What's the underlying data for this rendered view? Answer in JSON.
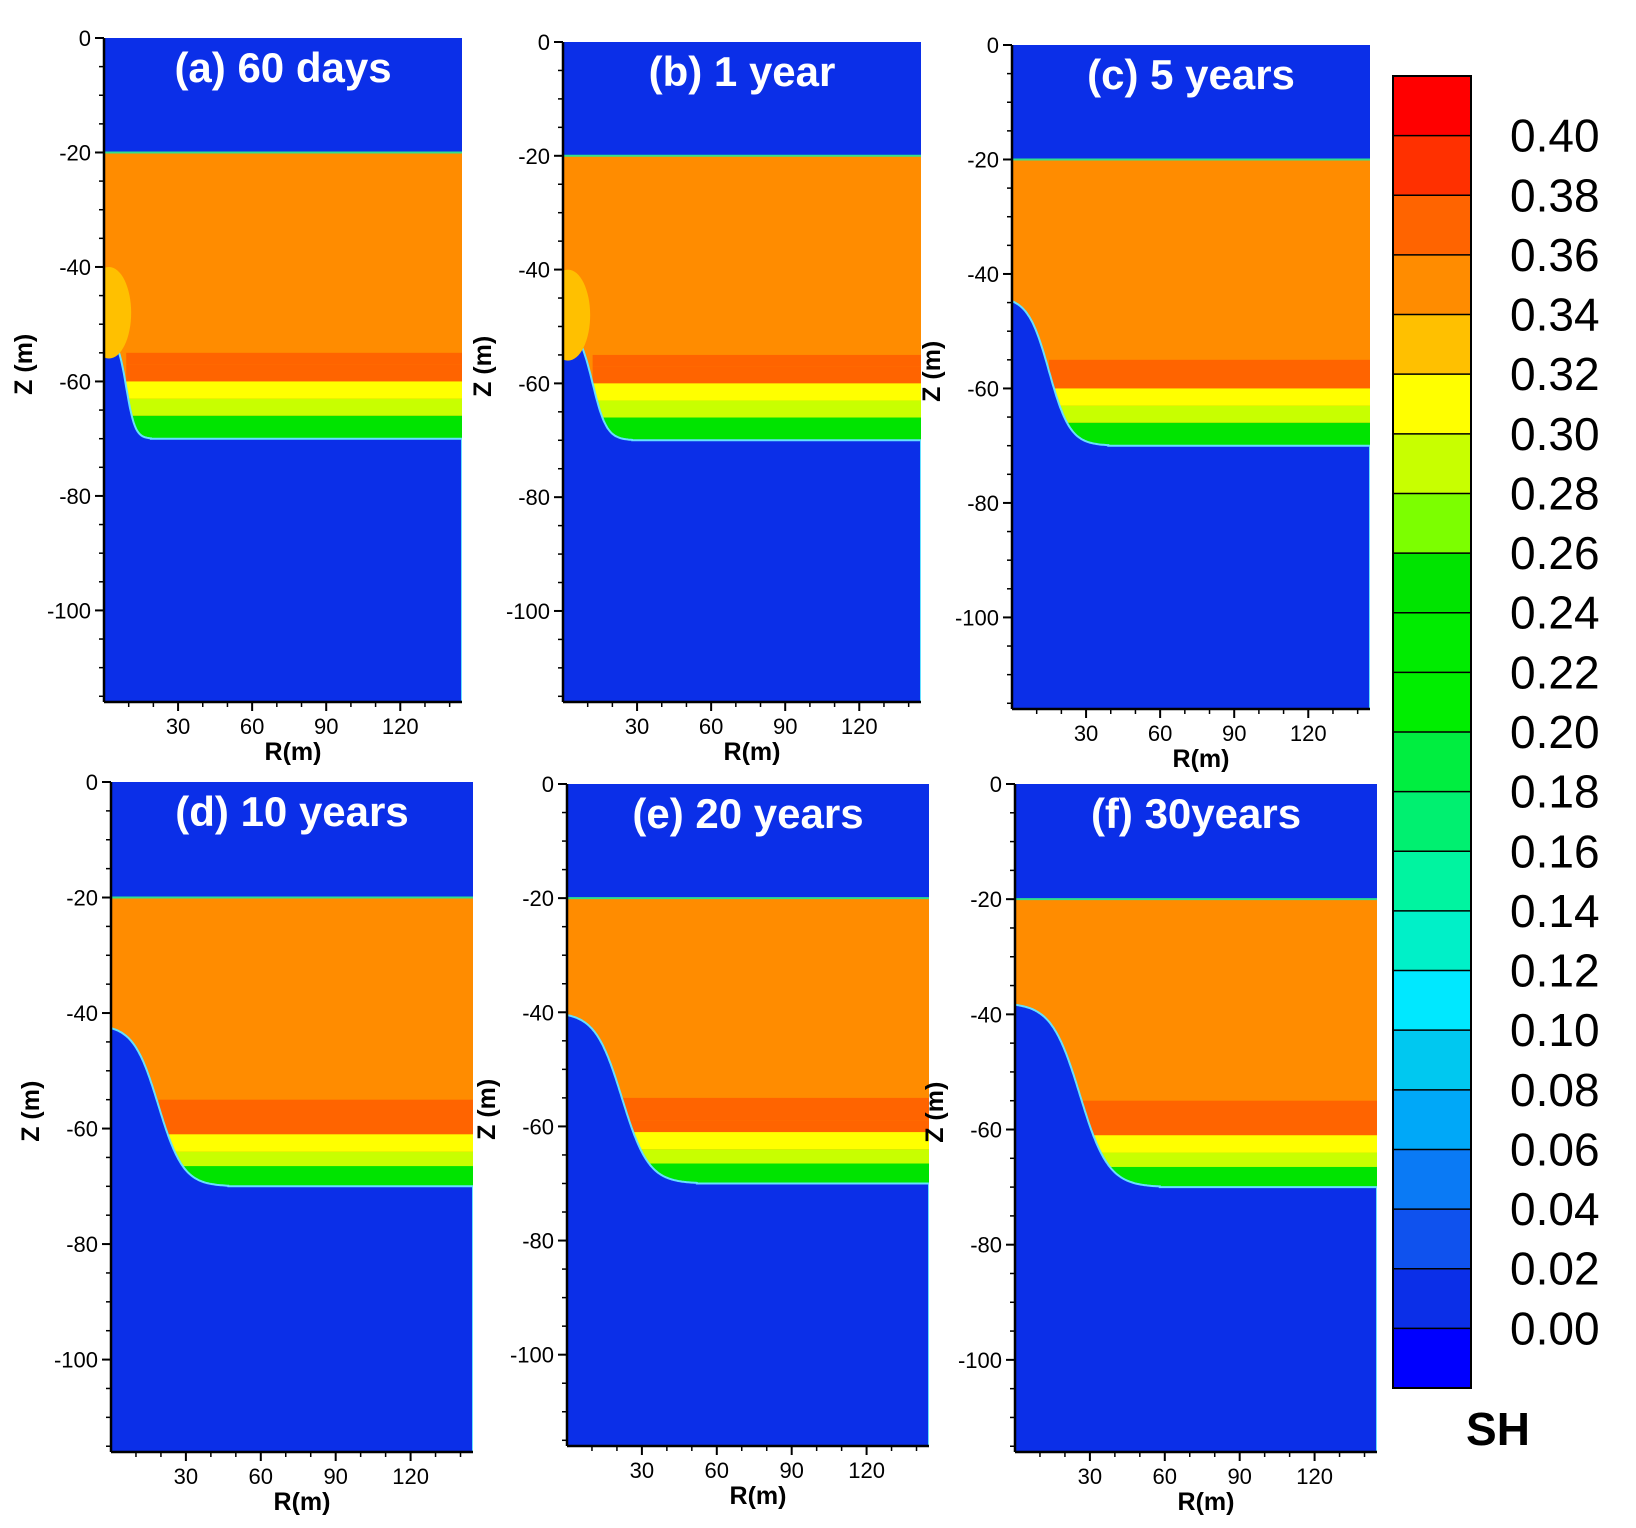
{
  "chart_data": {
    "type": "contour",
    "xlabel": "R(m)",
    "ylabel": "Z (m)",
    "x_ticks": [
      "30",
      "60",
      "90",
      "120"
    ],
    "y_ticks": [
      "0",
      "-20",
      "-40",
      "-60",
      "-80",
      "-100"
    ],
    "xlim": [
      0,
      145
    ],
    "ylim": [
      -116,
      0
    ],
    "variable": "SH",
    "colorbar": {
      "title": "SH",
      "levels": [
        0.0,
        0.02,
        0.04,
        0.06,
        0.08,
        0.1,
        0.12,
        0.14,
        0.16,
        0.18,
        0.2,
        0.22,
        0.24,
        0.26,
        0.28,
        0.3,
        0.32,
        0.34,
        0.36,
        0.38,
        0.4
      ],
      "labels": [
        "0.40",
        "0.38",
        "0.36",
        "0.34",
        "0.32",
        "0.30",
        "0.28",
        "0.26",
        "0.24",
        "0.22",
        "0.20",
        "0.18",
        "0.16",
        "0.14",
        "0.12",
        "0.10",
        "0.08",
        "0.06",
        "0.04",
        "0.02",
        "0.00"
      ],
      "colors": [
        "#0000ff",
        "#0b2fe8",
        "#0f52ee",
        "#0a7af5",
        "#00a8f8",
        "#00c8f0",
        "#00e8ff",
        "#00f0c8",
        "#00f4a0",
        "#00f070",
        "#00ee40",
        "#00ee00",
        "#00ec00",
        "#00e400",
        "#7cff00",
        "#c8ff00",
        "#ffff00",
        "#ffc000",
        "#ff8c00",
        "#ff6400",
        "#ff3000",
        "#ff0000"
      ]
    },
    "hydrate_layer": {
      "top_z": -20,
      "bottom_z": -70,
      "base_sh": 0.35
    },
    "panels": [
      {
        "title": "(a) 60 days",
        "front": {
          "z0": -52,
          "z1": -70,
          "r_mid": 9,
          "width": 2.5
        },
        "plume": true,
        "base_bands": [
          -55,
          -57,
          -60,
          -63,
          -66
        ]
      },
      {
        "title": "(b) 1 year",
        "front": {
          "z0": -50,
          "z1": -70,
          "r_mid": 12,
          "width": 4
        },
        "plume": true,
        "base_bands": [
          -55,
          -57,
          -60,
          -63,
          -66
        ]
      },
      {
        "title": "(c) 5 years",
        "front": {
          "z0": -44,
          "z1": -70,
          "r_mid": 15,
          "width": 6
        },
        "plume": false,
        "base_bands": [
          -55,
          -58,
          -60,
          -63,
          -66
        ]
      },
      {
        "title": "(d) 10 years",
        "front": {
          "z0": -42,
          "z1": -70,
          "r_mid": 19,
          "width": 7
        },
        "plume": false,
        "base_bands": [
          -55,
          -58,
          -61,
          -64,
          -67
        ]
      },
      {
        "title": "(e) 20 years",
        "front": {
          "z0": -40,
          "z1": -70,
          "r_mid": 22,
          "width": 7.5
        },
        "plume": false,
        "base_bands": [
          -55,
          -59,
          -61,
          -64,
          -67
        ]
      },
      {
        "title": "(f) 30years",
        "front": {
          "z0": -38,
          "z1": -70,
          "r_mid": 26,
          "width": 8
        },
        "plume": false,
        "base_bands": [
          -55,
          -58,
          -61,
          -64,
          -67
        ]
      }
    ]
  }
}
